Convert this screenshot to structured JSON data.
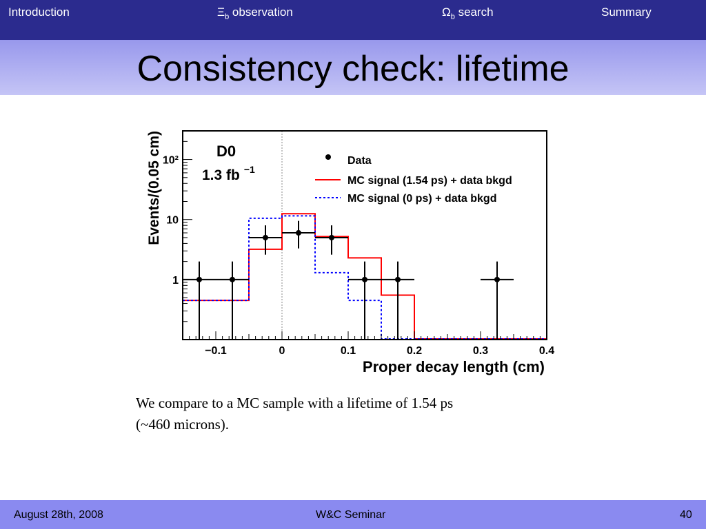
{
  "nav": {
    "introduction": "Introduction",
    "xi_symbol": "Ξ",
    "xi_sub": "b",
    "xi_text": " observation",
    "omega_symbol": "Ω",
    "omega_sub": "b",
    "omega_text": " search",
    "summary": "Summary"
  },
  "slide": {
    "title": "Consistency check: lifetime",
    "caption_line1": "We compare to a MC sample with a  lifetime of 1.54 ps",
    "caption_line2": "(~460 microns)."
  },
  "footer": {
    "date": "August 28th, 2008",
    "event": "W&C Seminar",
    "page": "40"
  },
  "colors": {
    "nav_bg": "#2b2b8e",
    "footer_bg": "#8a8af0",
    "signal_red": "#ff0000",
    "zero_blue": "#0000ff",
    "data_black": "#000000"
  },
  "chart_data": {
    "type": "line",
    "xlabel": "Proper decay length (cm)",
    "ylabel": "Events/(0.05 cm)",
    "xlim": [
      -0.15,
      0.4
    ],
    "ylim": [
      0.1,
      300
    ],
    "yscale": "log",
    "x_ticks": [
      -0.1,
      0,
      0.1,
      0.2,
      0.3,
      0.4
    ],
    "x_tick_labels": [
      "−0.1",
      "0",
      "0.1",
      "0.2",
      "0.3",
      "0.4"
    ],
    "y_ticks": [
      1,
      10,
      100
    ],
    "y_tick_labels": [
      "1",
      "10",
      "10²"
    ],
    "experiment": "D0",
    "luminosity": "1.3 fb",
    "luminosity_exp": "−1",
    "legend": {
      "position": "top-right",
      "entries": [
        "Data",
        "MC signal (1.54 ps) + data bkgd",
        "MC signal (0 ps) + data bkgd"
      ]
    },
    "bin_edges": [
      -0.15,
      -0.05,
      0.0,
      0.05,
      0.1,
      0.15,
      0.2,
      0.4
    ],
    "series": [
      {
        "name": "MC signal (1.54 ps) + data bkgd",
        "style": "solid",
        "color": "#ff0000",
        "values": [
          0.45,
          3.2,
          12.5,
          5.2,
          2.3,
          0.55,
          0.1
        ]
      },
      {
        "name": "MC signal (0 ps) + data bkgd",
        "style": "dotted",
        "color": "#0000ff",
        "values": [
          0.45,
          10.5,
          11.5,
          1.3,
          0.45,
          0.1,
          0.1
        ]
      }
    ],
    "points": {
      "name": "Data",
      "x": [
        -0.125,
        -0.075,
        -0.025,
        0.025,
        0.075,
        0.125,
        0.175,
        0.325
      ],
      "y": [
        1,
        1,
        5,
        6,
        5,
        1,
        1,
        1
      ],
      "y_low": [
        0.1,
        0.1,
        2.6,
        3.3,
        2.6,
        0.1,
        0.1,
        0.1
      ],
      "y_high": [
        2.0,
        2.0,
        8.0,
        9.5,
        8.0,
        2.0,
        2.0,
        2.0
      ],
      "x_err": 0.025
    },
    "reference_line_x": 0
  }
}
